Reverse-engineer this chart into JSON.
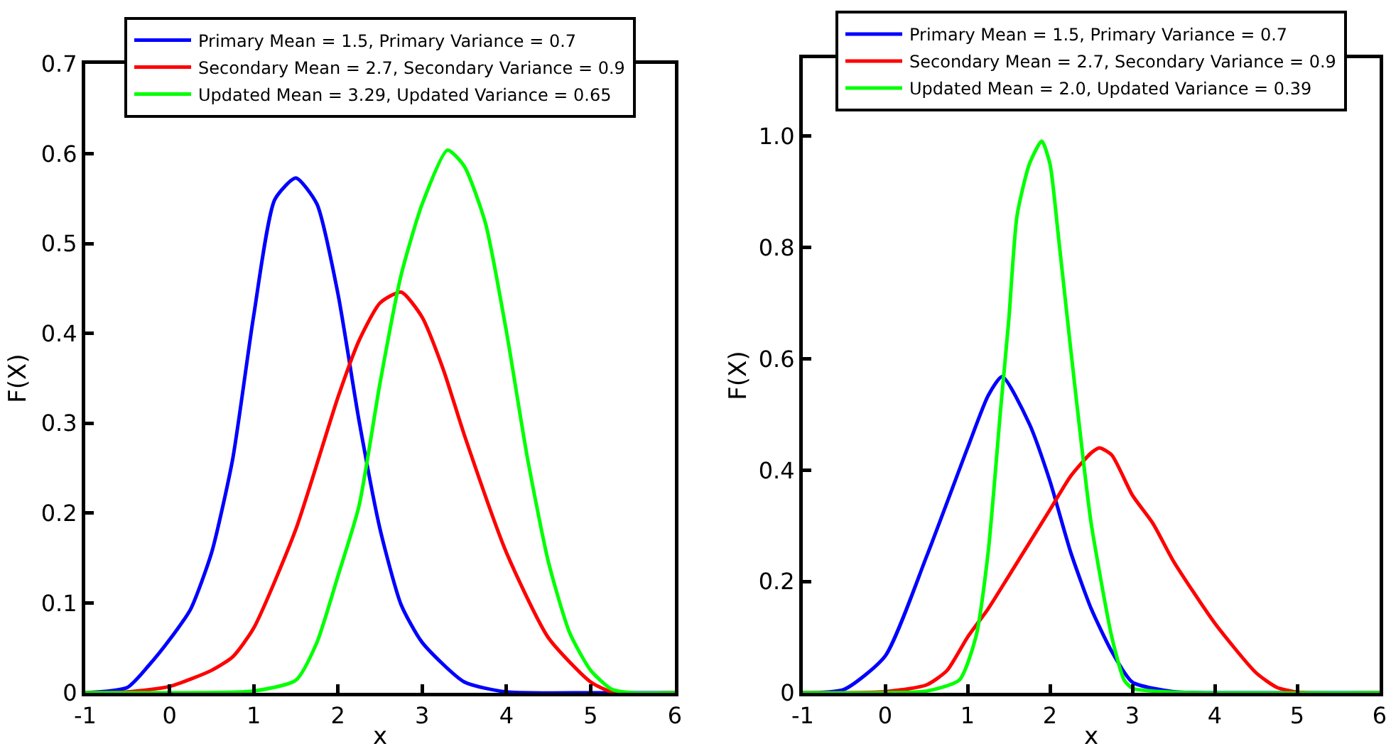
{
  "chart_data": [
    {
      "type": "line",
      "xlabel": "x",
      "ylabel": "F(X)",
      "legend": "top",
      "xlim": [
        -1,
        6
      ],
      "xticks": [
        -1,
        0,
        1,
        2,
        3,
        4,
        5,
        6
      ],
      "ylim": [
        0,
        0.7
      ],
      "yticks": [
        0,
        0.1,
        0.2,
        0.3,
        0.4,
        0.5,
        0.6,
        0.7
      ],
      "series": [
        {
          "name": "Primary Mean = 1.5, Primary Variance = 0.7",
          "color": "#0000ff",
          "x": [
            -1,
            -0.5,
            -0.25,
            0,
            0.25,
            0.5,
            0.75,
            1,
            1.25,
            1.5,
            1.75,
            2,
            2.25,
            2.5,
            2.75,
            3,
            3.5,
            4,
            5,
            6
          ],
          "values": [
            0,
            0.006,
            0.03,
            0.059,
            0.093,
            0.156,
            0.26,
            0.42,
            0.549,
            0.573,
            0.544,
            0.444,
            0.303,
            0.182,
            0.098,
            0.056,
            0.012,
            0.001,
            0,
            0
          ]
        },
        {
          "name": "Secondary Mean = 2.7, Secondary Variance = 0.9",
          "color": "#ff0000",
          "x": [
            -1,
            -0.5,
            0,
            0.5,
            0.75,
            1,
            1.5,
            2,
            2.25,
            2.5,
            2.75,
            3,
            3.25,
            3.5,
            4,
            4.5,
            5,
            5.25,
            6
          ],
          "values": [
            0,
            0.001,
            0.007,
            0.025,
            0.04,
            0.072,
            0.182,
            0.329,
            0.392,
            0.434,
            0.446,
            0.418,
            0.36,
            0.287,
            0.156,
            0.061,
            0.012,
            0.001,
            0
          ]
        },
        {
          "name": "Updated Mean = 3.29, Updated Variance = 0.65",
          "color": "#00ff00",
          "x": [
            -1,
            0,
            1,
            1.5,
            1.75,
            2,
            2.25,
            2.5,
            2.75,
            3,
            3.3,
            3.5,
            3.75,
            4,
            4.25,
            4.5,
            4.75,
            5,
            5.25,
            5.5,
            6
          ],
          "values": [
            0,
            0,
            0.002,
            0.014,
            0.056,
            0.13,
            0.208,
            0.345,
            0.465,
            0.544,
            0.604,
            0.586,
            0.523,
            0.402,
            0.261,
            0.145,
            0.067,
            0.025,
            0.004,
            0,
            0
          ]
        }
      ]
    },
    {
      "type": "line",
      "xlabel": "x",
      "ylabel": "F(X)",
      "legend": "top",
      "xlim": [
        -1,
        6
      ],
      "xticks": [
        -1,
        0,
        1,
        2,
        3,
        4,
        5,
        6
      ],
      "ylim": [
        0,
        1.14
      ],
      "yticks": [
        0,
        0.2,
        0.4,
        0.6,
        0.8,
        {
          "value": 1,
          "label": "1.0"
        }
      ],
      "series": [
        {
          "name": "Primary Mean = 1.5, Primary Variance = 0.7",
          "color": "#0000ff",
          "x": [
            -1,
            -0.5,
            0,
            0.5,
            1,
            1.25,
            1.42,
            1.75,
            2,
            2.25,
            2.5,
            2.75,
            3,
            3.5,
            4,
            6
          ],
          "values": [
            0,
            0.006,
            0.066,
            0.244,
            0.44,
            0.534,
            0.568,
            0.483,
            0.38,
            0.253,
            0.151,
            0.074,
            0.019,
            0.002,
            0,
            0
          ]
        },
        {
          "name": "Secondary Mean = 2.7, Secondary Variance = 0.9",
          "color": "#ff0000",
          "x": [
            -1,
            0,
            0.5,
            0.75,
            1,
            1.25,
            1.5,
            2,
            2.25,
            2.5,
            2.6,
            2.75,
            3,
            3.25,
            3.5,
            4,
            4.5,
            4.75,
            5,
            6
          ],
          "values": [
            0,
            0.002,
            0.014,
            0.04,
            0.1,
            0.151,
            0.21,
            0.329,
            0.389,
            0.431,
            0.44,
            0.427,
            0.355,
            0.304,
            0.236,
            0.125,
            0.036,
            0.01,
            0.001,
            0
          ]
        },
        {
          "name": "Updated Mean = 2.0, Updated Variance = 0.39",
          "color": "#00ff00",
          "x": [
            -1,
            0,
            0.5,
            0.9,
            1.1,
            1.25,
            1.4,
            1.5,
            1.6,
            1.75,
            1.9,
            2,
            2.1,
            2.25,
            2.4,
            2.5,
            2.75,
            2.9,
            3,
            3.5,
            6
          ],
          "values": [
            0,
            0,
            0.003,
            0.023,
            0.1,
            0.253,
            0.508,
            0.67,
            0.857,
            0.95,
            0.991,
            0.95,
            0.823,
            0.619,
            0.423,
            0.304,
            0.1,
            0.023,
            0.008,
            0.001,
            0
          ]
        }
      ]
    }
  ]
}
